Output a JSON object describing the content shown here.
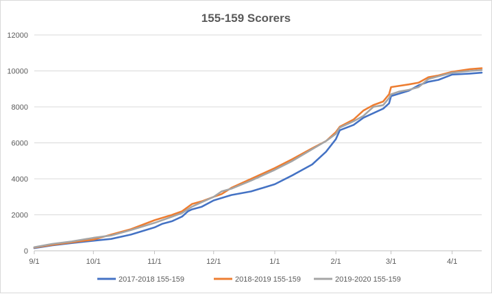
{
  "chart_data": {
    "type": "line",
    "title": "155-159 Scorers",
    "xlabel": "",
    "ylabel": "",
    "ylim": [
      0,
      12000
    ],
    "yticks": [
      0,
      2000,
      4000,
      6000,
      8000,
      10000,
      12000
    ],
    "xlim": [
      "9/1",
      "4/16"
    ],
    "xticks": [
      "9/1",
      "10/1",
      "11/1",
      "12/1",
      "1/1",
      "2/1",
      "3/1",
      "4/1"
    ],
    "grid": "horizontal",
    "legend_position": "bottom",
    "series": [
      {
        "name": "2017-2018 155-159",
        "color": "#4472c4",
        "points": [
          [
            "9/1",
            150
          ],
          [
            "9/10",
            300
          ],
          [
            "9/20",
            430
          ],
          [
            "10/1",
            560
          ],
          [
            "10/10",
            660
          ],
          [
            "10/20",
            900
          ],
          [
            "11/1",
            1300
          ],
          [
            "11/5",
            1500
          ],
          [
            "11/10",
            1650
          ],
          [
            "11/15",
            1900
          ],
          [
            "11/18",
            2200
          ],
          [
            "11/20",
            2300
          ],
          [
            "11/25",
            2450
          ],
          [
            "12/1",
            2800
          ],
          [
            "12/10",
            3100
          ],
          [
            "12/20",
            3300
          ],
          [
            "1/1",
            3700
          ],
          [
            "1/10",
            4200
          ],
          [
            "1/20",
            4800
          ],
          [
            "1/27",
            5500
          ],
          [
            "2/1",
            6200
          ],
          [
            "2/3",
            6700
          ],
          [
            "2/10",
            7000
          ],
          [
            "2/15",
            7400
          ],
          [
            "2/20",
            7650
          ],
          [
            "2/25",
            7900
          ],
          [
            "2/28",
            8200
          ],
          [
            "3/1",
            8600
          ],
          [
            "3/10",
            8900
          ],
          [
            "3/15",
            9200
          ],
          [
            "3/20",
            9400
          ],
          [
            "3/25",
            9500
          ],
          [
            "4/1",
            9800
          ],
          [
            "4/10",
            9850
          ],
          [
            "4/16",
            9900
          ]
        ]
      },
      {
        "name": "2018-2019 155-159",
        "color": "#ed7d31",
        "points": [
          [
            "9/1",
            180
          ],
          [
            "9/10",
            330
          ],
          [
            "9/20",
            470
          ],
          [
            "10/1",
            620
          ],
          [
            "10/10",
            900
          ],
          [
            "10/20",
            1200
          ],
          [
            "11/1",
            1700
          ],
          [
            "11/10",
            2000
          ],
          [
            "11/15",
            2200
          ],
          [
            "11/20",
            2600
          ],
          [
            "11/25",
            2750
          ],
          [
            "12/1",
            3000
          ],
          [
            "12/5",
            3150
          ],
          [
            "12/10",
            3500
          ],
          [
            "12/20",
            4000
          ],
          [
            "1/1",
            4600
          ],
          [
            "1/10",
            5100
          ],
          [
            "1/20",
            5700
          ],
          [
            "1/27",
            6100
          ],
          [
            "2/1",
            6600
          ],
          [
            "2/3",
            6900
          ],
          [
            "2/10",
            7300
          ],
          [
            "2/15",
            7800
          ],
          [
            "2/20",
            8100
          ],
          [
            "2/25",
            8300
          ],
          [
            "2/28",
            8700
          ],
          [
            "3/1",
            9100
          ],
          [
            "3/10",
            9250
          ],
          [
            "3/15",
            9350
          ],
          [
            "3/20",
            9650
          ],
          [
            "3/25",
            9750
          ],
          [
            "4/1",
            9950
          ],
          [
            "4/10",
            10100
          ],
          [
            "4/16",
            10150
          ]
        ]
      },
      {
        "name": "2019-2020 155-159",
        "color": "#a5a5a5",
        "points": [
          [
            "9/1",
            200
          ],
          [
            "9/10",
            380
          ],
          [
            "9/20",
            520
          ],
          [
            "10/1",
            720
          ],
          [
            "10/10",
            850
          ],
          [
            "10/20",
            1150
          ],
          [
            "11/1",
            1550
          ],
          [
            "11/10",
            1900
          ],
          [
            "11/15",
            2100
          ],
          [
            "11/20",
            2450
          ],
          [
            "11/25",
            2700
          ],
          [
            "12/1",
            3000
          ],
          [
            "12/5",
            3300
          ],
          [
            "12/10",
            3450
          ],
          [
            "12/20",
            3900
          ],
          [
            "1/1",
            4500
          ],
          [
            "1/10",
            5000
          ],
          [
            "1/20",
            5650
          ],
          [
            "1/27",
            6100
          ],
          [
            "2/1",
            6500
          ],
          [
            "2/3",
            6850
          ],
          [
            "2/10",
            7200
          ],
          [
            "2/15",
            7500
          ],
          [
            "2/20",
            8000
          ],
          [
            "2/25",
            8100
          ],
          [
            "2/28",
            8500
          ],
          [
            "3/1",
            8700
          ],
          [
            "3/5",
            8850
          ],
          [
            "3/10",
            8950
          ],
          [
            "3/15",
            9100
          ],
          [
            "3/20",
            9550
          ],
          [
            "3/25",
            9700
          ],
          [
            "4/1",
            9900
          ],
          [
            "4/10",
            10000
          ],
          [
            "4/16",
            10050
          ]
        ]
      }
    ]
  }
}
